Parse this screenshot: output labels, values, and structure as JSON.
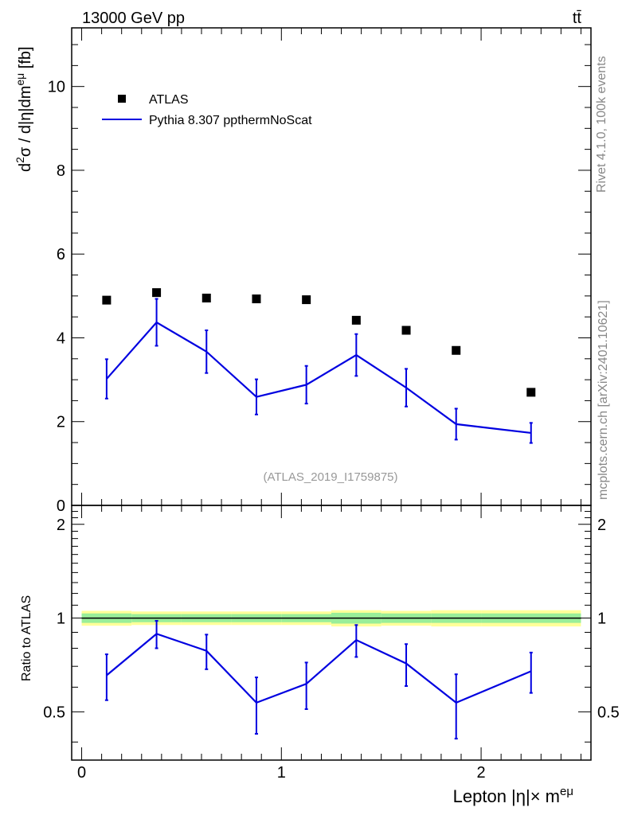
{
  "header": {
    "left_title": "13000 GeV pp",
    "right_title": "tt̄"
  },
  "side_labels": {
    "rivet": "Rivet 4.1.0,  100k events",
    "mcplots": "mcplots.cern.ch [arXiv:2401.10621]"
  },
  "analysis_tag": "(ATLAS_2019_I1759875)",
  "legend": {
    "data_label": "ATLAS",
    "mc_label": "Pythia 8.307 ppthermNoScat"
  },
  "colors": {
    "data": "#000000",
    "mc": "#0000e0",
    "band_inner": "#99ee99",
    "band_outer": "#ffff99",
    "axis": "#000000"
  },
  "chart_data": [
    {
      "type": "scatter",
      "name": "main",
      "ylabel": "d²σ / d|η|dm^{eμ} [fb]",
      "xlim": [
        -0.05,
        2.55
      ],
      "ylim": [
        0,
        11.4
      ],
      "yticks": [
        0,
        2,
        4,
        6,
        8,
        10
      ],
      "ytick_labels": [
        "0",
        "2",
        "4",
        "6",
        "8",
        "10"
      ],
      "data_series": {
        "name": "ATLAS",
        "x": [
          0.125,
          0.375,
          0.625,
          0.875,
          1.125,
          1.375,
          1.625,
          1.875,
          2.25
        ],
        "y": [
          4.9,
          5.08,
          4.95,
          4.93,
          4.91,
          4.42,
          4.18,
          3.7,
          2.7
        ]
      },
      "mc_series": {
        "name": "Pythia 8.307 ppthermNoScat",
        "x": [
          0.125,
          0.375,
          0.625,
          0.875,
          1.125,
          1.375,
          1.625,
          1.875,
          2.25
        ],
        "y": [
          3.02,
          4.37,
          3.67,
          2.59,
          2.88,
          3.59,
          2.81,
          1.94,
          1.73
        ],
        "err": [
          0.47,
          0.56,
          0.51,
          0.42,
          0.45,
          0.5,
          0.45,
          0.37,
          0.24
        ]
      }
    },
    {
      "type": "line",
      "name": "ratio",
      "ylabel": "Ratio to ATLAS",
      "xlabel": "Lepton |η|× m^{eμ}",
      "xlim": [
        -0.05,
        2.55
      ],
      "ylim": [
        0.35,
        2.3
      ],
      "yticks": [
        0.5,
        1,
        2
      ],
      "ytick_labels": [
        "0.5",
        "1",
        "2"
      ],
      "xticks": [
        0,
        1,
        2
      ],
      "xtick_labels": [
        "0",
        "1",
        "2"
      ],
      "bin_edges": [
        0,
        0.25,
        0.5,
        0.75,
        1.0,
        1.25,
        1.5,
        1.75,
        2.0,
        2.5
      ],
      "band_inner": [
        0.035,
        0.03,
        0.03,
        0.03,
        0.03,
        0.04,
        0.035,
        0.035,
        0.035
      ],
      "band_outer": [
        0.055,
        0.05,
        0.05,
        0.05,
        0.05,
        0.06,
        0.055,
        0.06,
        0.06
      ],
      "mc_series": {
        "x": [
          0.125,
          0.375,
          0.625,
          0.875,
          1.125,
          1.375,
          1.625,
          1.875,
          2.25
        ],
        "y": [
          0.655,
          0.89,
          0.785,
          0.535,
          0.615,
          0.85,
          0.715,
          0.535,
          0.675
        ],
        "err": [
          0.11,
          0.09,
          0.1,
          0.11,
          0.105,
          0.1,
          0.11,
          0.125,
          0.1
        ]
      }
    }
  ]
}
